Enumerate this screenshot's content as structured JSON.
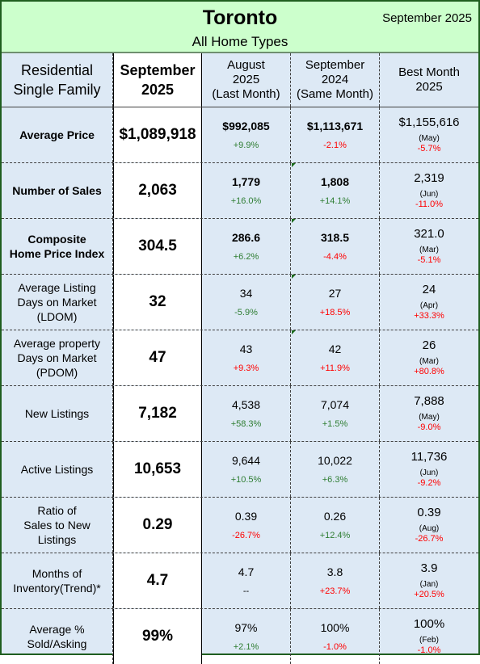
{
  "header": {
    "city": "Toronto",
    "subtitle": "All Home Types",
    "date": "September 2025"
  },
  "columns": {
    "c0": [
      "Residential",
      "Single Family"
    ],
    "c1": [
      "September",
      "2025"
    ],
    "c2": [
      "August",
      "2025",
      "(Last Month)"
    ],
    "c3": [
      "September",
      "2024",
      "(Same Month)"
    ],
    "c4": [
      "Best Month",
      "2025"
    ]
  },
  "rows": [
    {
      "label": [
        "Average Price"
      ],
      "label_bold": true,
      "current": "$1,089,918",
      "last": "$992,085",
      "last_chg": "+9.9%",
      "last_dir": "pos",
      "same": "$1,113,671",
      "same_chg": "-2.1%",
      "same_dir": "neg",
      "best": "$1,155,616",
      "best_month": "(May)",
      "best_chg": "-5.7%",
      "values_bold": true,
      "flag_last": false,
      "flag_same": false
    },
    {
      "label": [
        "Number of Sales"
      ],
      "label_bold": true,
      "current": "2,063",
      "last": "1,779",
      "last_chg": "+16.0%",
      "last_dir": "pos",
      "same": "1,808",
      "same_chg": "+14.1%",
      "same_dir": "pos",
      "best": "2,319",
      "best_month": "(Jun)",
      "best_chg": "-11.0%",
      "values_bold": true,
      "flag_last": false,
      "flag_same": true
    },
    {
      "label": [
        "Composite",
        "Home Price Index"
      ],
      "label_bold": true,
      "current": "304.5",
      "last": "286.6",
      "last_chg": "+6.2%",
      "last_dir": "pos",
      "same": "318.5",
      "same_chg": "-4.4%",
      "same_dir": "neg",
      "best": "321.0",
      "best_month": "(Mar)",
      "best_chg": "-5.1%",
      "values_bold": true,
      "flag_last": false,
      "flag_same": true
    },
    {
      "label": [
        "Average Listing",
        "Days on Market",
        "(LDOM)"
      ],
      "label_bold": false,
      "current": "32",
      "last": "34",
      "last_chg": "-5.9%",
      "last_dir": "pos",
      "same": "27",
      "same_chg": "+18.5%",
      "same_dir": "neg",
      "best": "24",
      "best_month": "(Apr)",
      "best_chg": "+33.3%",
      "values_bold": false,
      "flag_last": false,
      "flag_same": true
    },
    {
      "label": [
        "Average property",
        "Days on Market",
        "(PDOM)"
      ],
      "label_bold": false,
      "current": "47",
      "last": "43",
      "last_chg": "+9.3%",
      "last_dir": "neg",
      "same": "42",
      "same_chg": "+11.9%",
      "same_dir": "neg",
      "best": "26",
      "best_month": "(Mar)",
      "best_chg": "+80.8%",
      "values_bold": false,
      "flag_last": false,
      "flag_same": true
    },
    {
      "label": [
        "New Listings"
      ],
      "label_bold": false,
      "current": "7,182",
      "last": "4,538",
      "last_chg": "+58.3%",
      "last_dir": "pos",
      "same": "7,074",
      "same_chg": "+1.5%",
      "same_dir": "pos",
      "best": "7,888",
      "best_month": "(May)",
      "best_chg": "-9.0%",
      "values_bold": false,
      "flag_last": false,
      "flag_same": false
    },
    {
      "label": [
        "Active Listings"
      ],
      "label_bold": false,
      "current": "10,653",
      "last": "9,644",
      "last_chg": "+10.5%",
      "last_dir": "pos",
      "same": "10,022",
      "same_chg": "+6.3%",
      "same_dir": "pos",
      "best": "11,736",
      "best_month": "(Jun)",
      "best_chg": "-9.2%",
      "values_bold": false,
      "flag_last": false,
      "flag_same": false
    },
    {
      "label": [
        "Ratio of",
        "Sales to New",
        "Listings"
      ],
      "label_bold": false,
      "current": "0.29",
      "last": "0.39",
      "last_chg": "-26.7%",
      "last_dir": "neg",
      "same": "0.26",
      "same_chg": "+12.4%",
      "same_dir": "pos",
      "best": "0.39",
      "best_month": "(Aug)",
      "best_chg": "-26.7%",
      "values_bold": false,
      "flag_last": false,
      "flag_same": false
    },
    {
      "label": [
        "Months of",
        "Inventory(Trend)*"
      ],
      "label_bold": false,
      "current": "4.7",
      "last": "4.7",
      "last_chg": "--",
      "last_dir": "neu",
      "same": "3.8",
      "same_chg": "+23.7%",
      "same_dir": "neg",
      "best": "3.9",
      "best_month": "(Jan)",
      "best_chg": "+20.5%",
      "values_bold": false,
      "flag_last": false,
      "flag_same": false
    },
    {
      "label": [
        "Average %",
        "Sold/Asking"
      ],
      "label_bold": false,
      "current": "99%",
      "last": "97%",
      "last_chg": "+2.1%",
      "last_dir": "pos",
      "same": "100%",
      "same_chg": "-1.0%",
      "same_dir": "neg",
      "best": "100%",
      "best_month": "(Feb)",
      "best_chg": "-1.0%",
      "values_bold": false,
      "flag_last": false,
      "flag_same": false
    }
  ]
}
